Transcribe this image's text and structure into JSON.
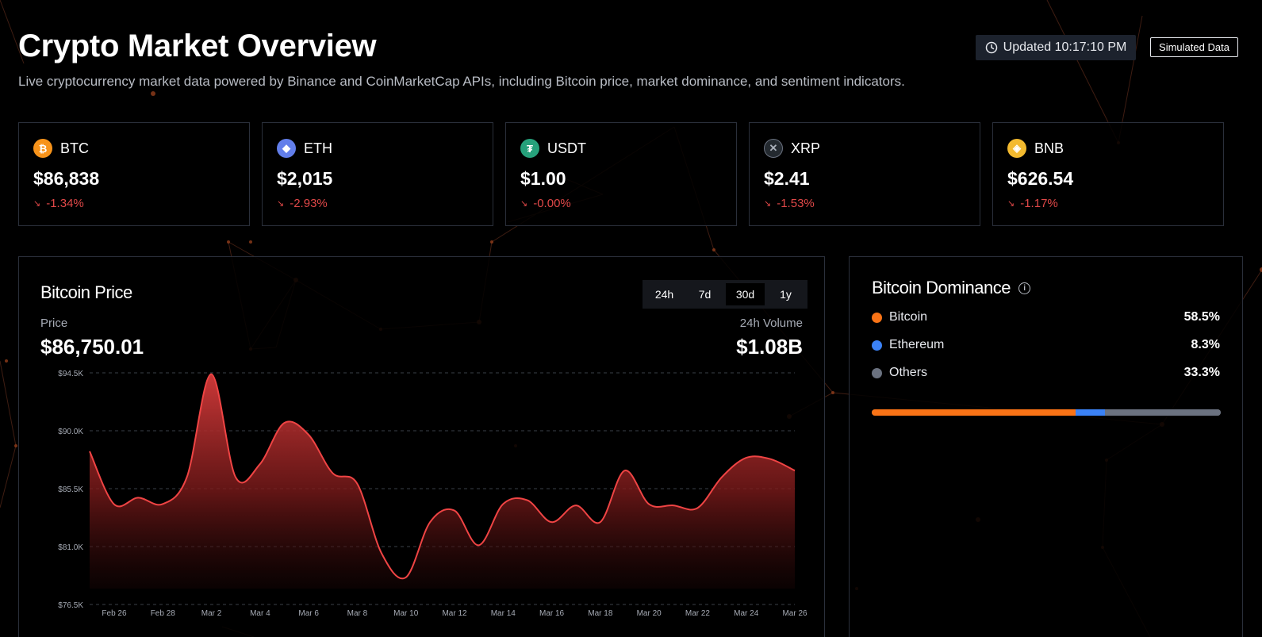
{
  "header": {
    "title": "Crypto Market Overview",
    "subtitle": "Live cryptocurrency market data powered by Binance and CoinMarketCap APIs, including Bitcoin price, market dominance, and sentiment indicators.",
    "updated_label": "Updated 10:17:10 PM",
    "badge": "Simulated Data"
  },
  "coins": [
    {
      "symbol": "BTC",
      "price": "$86,838",
      "change": "-1.34%",
      "color": "#f7931a",
      "icon": "bitcoin-icon",
      "glyph": "₿"
    },
    {
      "symbol": "ETH",
      "price": "$2,015",
      "change": "-2.93%",
      "color": "#627eea",
      "icon": "ethereum-icon",
      "glyph": "◆"
    },
    {
      "symbol": "USDT",
      "price": "$1.00",
      "change": "-0.00%",
      "color": "#26a17b",
      "icon": "tether-icon",
      "glyph": "₮"
    },
    {
      "symbol": "XRP",
      "price": "$2.41",
      "change": "-1.53%",
      "color": "#23292f",
      "icon": "xrp-icon",
      "glyph": "✕"
    },
    {
      "symbol": "BNB",
      "price": "$626.54",
      "change": "-1.17%",
      "color": "#f3ba2f",
      "icon": "bnb-icon",
      "glyph": "◈"
    }
  ],
  "price_panel": {
    "title": "Bitcoin Price",
    "tabs": [
      "24h",
      "7d",
      "30d",
      "1y"
    ],
    "active_tab": "30d",
    "price_label": "Price",
    "price_value": "$86,750.01",
    "volume_label": "24h Volume",
    "volume_value": "$1.08B"
  },
  "chart_data": {
    "type": "area",
    "title": "Bitcoin Price",
    "xlabel": "",
    "ylabel": "",
    "ylim": [
      76500,
      94500
    ],
    "y_ticks": [
      76500,
      81000,
      85500,
      90000,
      94500
    ],
    "y_tick_labels": [
      "$76.5K",
      "$81.0K",
      "$85.5K",
      "$90.0K",
      "$94.5K"
    ],
    "x_tick_labels": [
      "Feb 26",
      "Feb 28",
      "Mar 2",
      "Mar 4",
      "Mar 6",
      "Mar 8",
      "Mar 10",
      "Mar 12",
      "Mar 14",
      "Mar 16",
      "Mar 18",
      "Mar 20",
      "Mar 22",
      "Mar 24",
      "Mar 26"
    ],
    "grid": true,
    "series": [
      {
        "values": [
          88400,
          84300,
          84800,
          84300,
          86400,
          94400,
          86400,
          87400,
          90600,
          89700,
          86700,
          85900,
          80500,
          78600,
          82900,
          83800,
          81100,
          84300,
          84600,
          82900,
          84200,
          82900,
          86900,
          84300,
          84200,
          84000,
          86400,
          87900,
          87800,
          86900
        ],
        "color": "#ef4444"
      }
    ]
  },
  "dominance": {
    "title": "Bitcoin Dominance",
    "items": [
      {
        "name": "Bitcoin",
        "pct": "58.5%",
        "value": 58.5,
        "color": "#f97316"
      },
      {
        "name": "Ethereum",
        "pct": "8.3%",
        "value": 8.3,
        "color": "#3b82f6"
      },
      {
        "name": "Others",
        "pct": "33.3%",
        "value": 33.3,
        "color": "#6b7280"
      }
    ]
  }
}
